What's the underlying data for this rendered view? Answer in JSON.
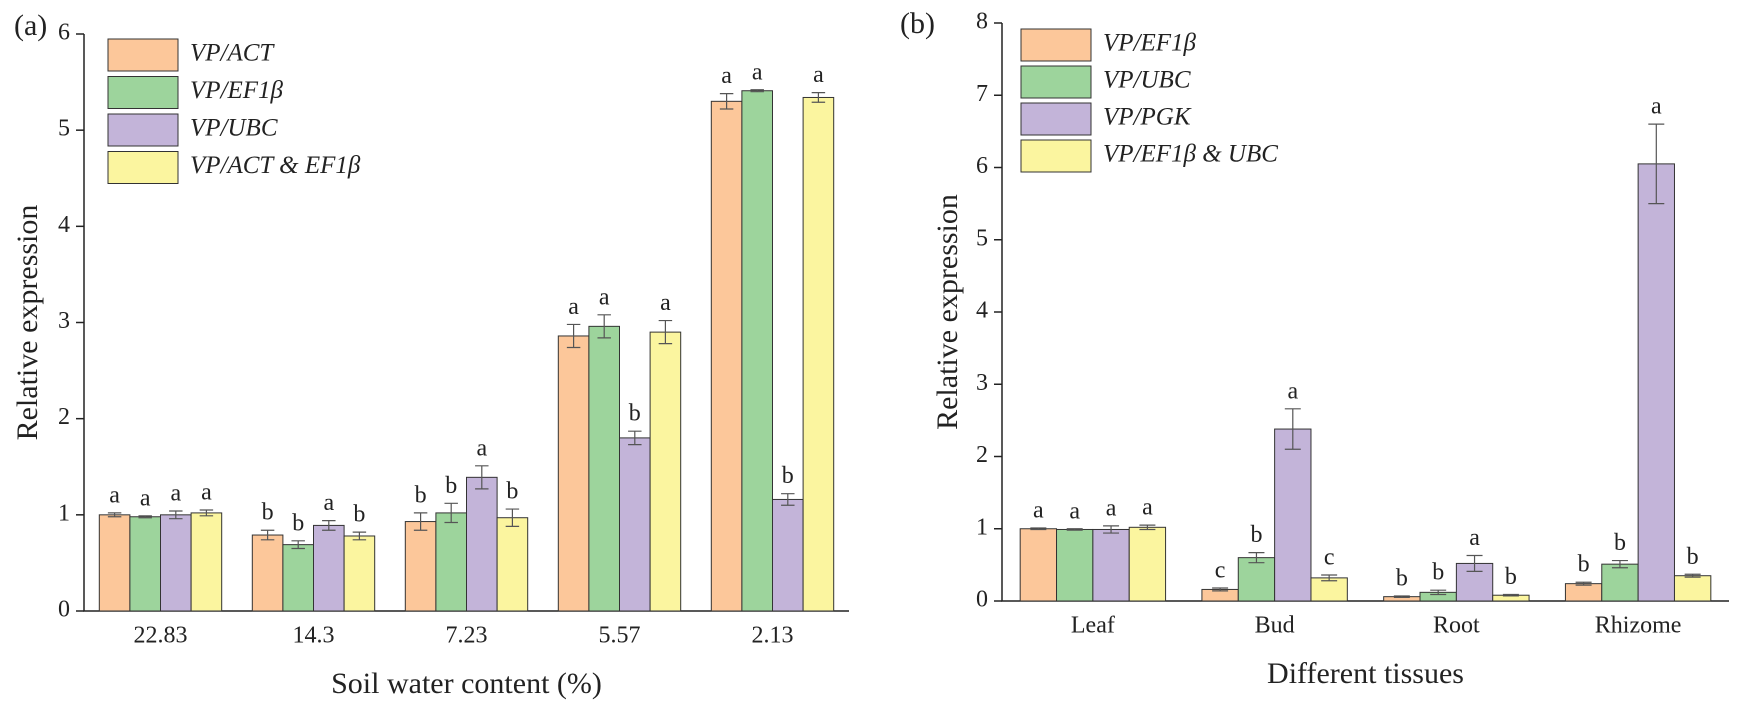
{
  "chart_data": [
    {
      "type": "bar",
      "label": "(a)",
      "xlabel": "Soil water content (%)",
      "ylabel": "Relative expression",
      "categories": [
        "22.83",
        "14.3",
        "7.23",
        "5.57",
        "2.13"
      ],
      "ylim": [
        0,
        6
      ],
      "yticks": [
        0,
        1,
        2,
        3,
        4,
        5,
        6
      ],
      "series": [
        {
          "name": "VP/ACT",
          "color": "#fcc79a",
          "values": [
            1.0,
            0.79,
            0.93,
            2.86,
            5.3
          ],
          "errors": [
            0.02,
            0.05,
            0.09,
            0.12,
            0.08
          ],
          "letters": [
            "a",
            "b",
            "b",
            "a",
            "a"
          ]
        },
        {
          "name": "VP/EF1β",
          "color": "#9dd49c",
          "values": [
            0.98,
            0.69,
            1.02,
            2.96,
            5.41
          ],
          "errors": [
            0.01,
            0.04,
            0.1,
            0.12,
            0.01
          ],
          "letters": [
            "a",
            "b",
            "b",
            "a",
            "a"
          ]
        },
        {
          "name": "VP/UBC",
          "color": "#c3b4d9",
          "values": [
            1.0,
            0.89,
            1.39,
            1.8,
            1.16
          ],
          "errors": [
            0.04,
            0.05,
            0.12,
            0.07,
            0.06
          ],
          "letters": [
            "a",
            "a",
            "a",
            "b",
            "b"
          ]
        },
        {
          "name": "VP/ACT & EF1β",
          "color": "#fbf59f",
          "values": [
            1.02,
            0.78,
            0.97,
            2.9,
            5.34
          ],
          "errors": [
            0.03,
            0.04,
            0.09,
            0.12,
            0.05
          ],
          "letters": [
            "a",
            "b",
            "b",
            "a",
            "a"
          ]
        }
      ]
    },
    {
      "type": "bar",
      "label": "(b)",
      "xlabel": "Different tissues",
      "ylabel": "Relative expression",
      "categories": [
        "Leaf",
        "Bud",
        "Root",
        "Rhizome"
      ],
      "ylim": [
        0,
        8
      ],
      "yticks": [
        0,
        1,
        2,
        3,
        4,
        5,
        6,
        7,
        8
      ],
      "series": [
        {
          "name": "VP/EF1β",
          "color": "#fcc79a",
          "values": [
            1.0,
            0.16,
            0.06,
            0.24
          ],
          "errors": [
            0.01,
            0.02,
            0.01,
            0.02
          ],
          "letters": [
            "a",
            "c",
            "b",
            "b"
          ]
        },
        {
          "name": "VP/UBC",
          "color": "#9dd49c",
          "values": [
            0.99,
            0.6,
            0.12,
            0.51
          ],
          "errors": [
            0.01,
            0.07,
            0.03,
            0.05
          ],
          "letters": [
            "a",
            "b",
            "b",
            "b"
          ]
        },
        {
          "name": "VP/PGK",
          "color": "#c3b4d9",
          "values": [
            0.99,
            2.38,
            0.52,
            6.05
          ],
          "errors": [
            0.05,
            0.28,
            0.11,
            0.55
          ],
          "letters": [
            "a",
            "a",
            "a",
            "a"
          ]
        },
        {
          "name": "VP/EF1β & UBC",
          "color": "#fbf59f",
          "values": [
            1.02,
            0.32,
            0.08,
            0.35
          ],
          "errors": [
            0.03,
            0.04,
            0.01,
            0.02
          ],
          "letters": [
            "a",
            "c",
            "b",
            "b"
          ]
        }
      ]
    }
  ]
}
